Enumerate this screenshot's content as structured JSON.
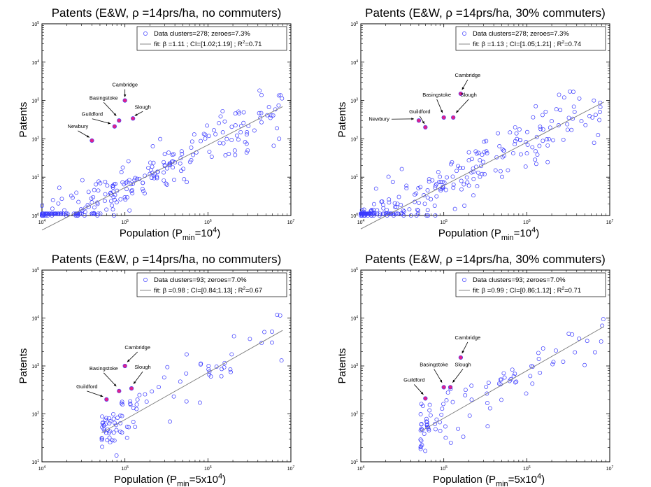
{
  "styles": {
    "marker_color": "#3b3bff",
    "highlight_color": "#e0218a",
    "fit_color": "#7a7a7a",
    "axis_color": "#000000"
  },
  "chart_data": [
    {
      "type": "scatter",
      "title": "Patents (E&W, ρ =14prs/ha, no commuters)",
      "xlabel": "Population (P",
      "xlabel_sub": "min",
      "xlabel_rest": "=10",
      "xlabel_sup": "4",
      "xlabel_tail": ")",
      "ylabel": "Patents",
      "xscale": "log",
      "yscale": "log",
      "xlim": [
        10000,
        10000000
      ],
      "ylim": [
        1,
        100000
      ],
      "xticks": [
        {
          "v": 10000,
          "e": "4"
        },
        {
          "v": 100000,
          "e": "5"
        },
        {
          "v": 1000000,
          "e": "6"
        },
        {
          "v": 10000000,
          "e": "7"
        }
      ],
      "yticks": [
        {
          "v": 1,
          "e": "0"
        },
        {
          "v": 10,
          "e": "1"
        },
        {
          "v": 100,
          "e": "2"
        },
        {
          "v": 1000,
          "e": "3"
        },
        {
          "v": 10000,
          "e": "4"
        },
        {
          "v": 100000,
          "e": "5"
        }
      ],
      "legend_position": "top-right",
      "legend": {
        "data_label": "Data clusters=278;  zeroes=7.3%",
        "fit_label": "fit: β =1.11 ; CI=[1.02;1.19] ; R",
        "fit_sup": "2",
        "fit_tail": "=0.71"
      },
      "fit": {
        "beta": 1.11,
        "intercept": -4.82
      },
      "cluster_count": 278,
      "scatter": {
        "seed": 11,
        "n_clusters": 278,
        "n_zero_floor": 20,
        "xmin_log": 4.0,
        "xmax_log": 6.9,
        "noise": 0.32,
        "xdecay": 1.6
      },
      "highlighted": [
        {
          "name": "Cambridge",
          "x": 100000,
          "y": 1000,
          "label_dx": 0,
          "label_dy": -20,
          "anchor": "middle"
        },
        {
          "name": "Basingstoke",
          "x": 85000,
          "y": 300,
          "label_dx": -22,
          "label_dy": -30,
          "anchor": "middle"
        },
        {
          "name": "Slough",
          "x": 125000,
          "y": 340,
          "label_dx": 14,
          "label_dy": -14,
          "anchor": "middle"
        },
        {
          "name": "Guildford",
          "x": 75000,
          "y": 210,
          "label_dx": -32,
          "label_dy": -15,
          "anchor": "middle"
        },
        {
          "name": "Newbury",
          "x": 40000,
          "y": 90,
          "label_dx": -20,
          "label_dy": -18,
          "anchor": "middle"
        }
      ]
    },
    {
      "type": "scatter",
      "title": "Patents (E&W, ρ =14prs/ha, 30% commuters)",
      "xlabel": "Population (P",
      "xlabel_sub": "min",
      "xlabel_rest": "=10",
      "xlabel_sup": "4",
      "xlabel_tail": ")",
      "ylabel": "Patents",
      "xscale": "log",
      "yscale": "log",
      "xlim": [
        10000,
        10000000
      ],
      "ylim": [
        1,
        100000
      ],
      "xticks": [
        {
          "v": 10000,
          "e": "4"
        },
        {
          "v": 100000,
          "e": "5"
        },
        {
          "v": 1000000,
          "e": "6"
        },
        {
          "v": 10000000,
          "e": "7"
        }
      ],
      "yticks": [
        {
          "v": 1,
          "e": "0"
        },
        {
          "v": 10,
          "e": "1"
        },
        {
          "v": 100,
          "e": "2"
        },
        {
          "v": 1000,
          "e": "3"
        },
        {
          "v": 10000,
          "e": "4"
        },
        {
          "v": 100000,
          "e": "5"
        }
      ],
      "legend_position": "top-right",
      "legend": {
        "data_label": "Data clusters=278;  zeroes=7.3%",
        "fit_label": "fit: β =1.13 ; CI=[1.05;1.21] ; R",
        "fit_sup": "2",
        "fit_tail": "=0.74"
      },
      "fit": {
        "beta": 1.13,
        "intercept": -4.87
      },
      "cluster_count": 278,
      "scatter": {
        "seed": 23,
        "n_clusters": 278,
        "n_zero_floor": 20,
        "xmin_log": 4.0,
        "xmax_log": 6.93,
        "noise": 0.32,
        "xdecay": 1.6
      },
      "highlighted": [
        {
          "name": "Cambridge",
          "x": 160000,
          "y": 1500,
          "label_dx": 10,
          "label_dy": -24,
          "anchor": "middle"
        },
        {
          "name": "Basingstoke",
          "x": 100000,
          "y": 360,
          "label_dx": -10,
          "label_dy": -30,
          "anchor": "middle"
        },
        {
          "name": "Slough",
          "x": 130000,
          "y": 360,
          "label_dx": 22,
          "label_dy": -30,
          "anchor": "middle"
        },
        {
          "name": "Guildford",
          "x": 60000,
          "y": 200,
          "label_dx": -8,
          "label_dy": -20,
          "anchor": "middle"
        },
        {
          "name": "Newbury",
          "x": 50000,
          "y": 300,
          "label_dx": -42,
          "label_dy": 0,
          "anchor": "end"
        }
      ]
    },
    {
      "type": "scatter",
      "title": "Patents (E&W, ρ =14prs/ha, no commuters)",
      "xlabel": "Population (P",
      "xlabel_sub": "min",
      "xlabel_rest": "=5x10",
      "xlabel_sup": "4",
      "xlabel_tail": ")",
      "ylabel": "Patents",
      "xscale": "log",
      "yscale": "log",
      "xlim": [
        10000,
        10000000
      ],
      "ylim": [
        10,
        100000
      ],
      "xticks": [
        {
          "v": 10000,
          "e": "4"
        },
        {
          "v": 100000,
          "e": "5"
        },
        {
          "v": 1000000,
          "e": "6"
        },
        {
          "v": 10000000,
          "e": "7"
        }
      ],
      "yticks": [
        {
          "v": 10,
          "e": "1"
        },
        {
          "v": 100,
          "e": "2"
        },
        {
          "v": 1000,
          "e": "3"
        },
        {
          "v": 10000,
          "e": "4"
        },
        {
          "v": 100000,
          "e": "5"
        }
      ],
      "legend_position": "top-right",
      "legend": {
        "data_label": "Data clusters=93;  zeroes=7.0%",
        "fit_label": "fit: β =0.98 ; CI=[0.84;1.13] ; R",
        "fit_sup": "2",
        "fit_tail": "=0.67"
      },
      "fit": {
        "beta": 0.98,
        "intercept": -3.02
      },
      "cluster_count": 93,
      "scatter": {
        "seed": 37,
        "n_clusters": 93,
        "n_zero_floor": 0,
        "xmin_log": 4.72,
        "xmax_log": 6.9,
        "noise": 0.26,
        "xdecay": 2.2
      },
      "highlighted": [
        {
          "name": "Cambridge",
          "x": 100000,
          "y": 1000,
          "label_dx": 18,
          "label_dy": -24,
          "anchor": "middle"
        },
        {
          "name": "Basingstoke",
          "x": 85000,
          "y": 300,
          "label_dx": -22,
          "label_dy": -30,
          "anchor": "middle"
        },
        {
          "name": "Slough",
          "x": 120000,
          "y": 340,
          "label_dx": 16,
          "label_dy": -28,
          "anchor": "middle"
        },
        {
          "name": "Guildford",
          "x": 60000,
          "y": 200,
          "label_dx": -28,
          "label_dy": -16,
          "anchor": "middle"
        }
      ]
    },
    {
      "type": "scatter",
      "title": "Patents (E&W, ρ =14prs/ha, 30% commuters)",
      "xlabel": "Population (P",
      "xlabel_sub": "min",
      "xlabel_rest": "=5x10",
      "xlabel_sup": "4",
      "xlabel_tail": ")",
      "ylabel": "Patents",
      "xscale": "log",
      "yscale": "log",
      "xlim": [
        10000,
        10000000
      ],
      "ylim": [
        10,
        100000
      ],
      "xticks": [
        {
          "v": 10000,
          "e": "4"
        },
        {
          "v": 100000,
          "e": "5"
        },
        {
          "v": 1000000,
          "e": "6"
        },
        {
          "v": 10000000,
          "e": "7"
        }
      ],
      "yticks": [
        {
          "v": 10,
          "e": "1"
        },
        {
          "v": 100,
          "e": "2"
        },
        {
          "v": 1000,
          "e": "3"
        },
        {
          "v": 10000,
          "e": "4"
        },
        {
          "v": 100000,
          "e": "5"
        }
      ],
      "legend_position": "top-right",
      "legend": {
        "data_label": "Data clusters=93;  zeroes=7.0%",
        "fit_label": "fit: β =0.99 ; CI=[0.86;1.12] ; R",
        "fit_sup": "2",
        "fit_tail": "=0.71"
      },
      "fit": {
        "beta": 0.99,
        "intercept": -3.04
      },
      "cluster_count": 93,
      "scatter": {
        "seed": 53,
        "n_clusters": 93,
        "n_zero_floor": 0,
        "xmin_log": 4.72,
        "xmax_log": 6.93,
        "noise": 0.26,
        "xdecay": 2.2
      },
      "highlighted": [
        {
          "name": "Cambridge",
          "x": 160000,
          "y": 1500,
          "label_dx": 10,
          "label_dy": -26,
          "anchor": "middle"
        },
        {
          "name": "Basingstoke",
          "x": 100000,
          "y": 360,
          "label_dx": -14,
          "label_dy": -30,
          "anchor": "middle"
        },
        {
          "name": "Slough",
          "x": 120000,
          "y": 360,
          "label_dx": 18,
          "label_dy": -30,
          "anchor": "middle"
        },
        {
          "name": "Guildford",
          "x": 60000,
          "y": 210,
          "label_dx": -16,
          "label_dy": -24,
          "anchor": "middle"
        }
      ]
    }
  ]
}
